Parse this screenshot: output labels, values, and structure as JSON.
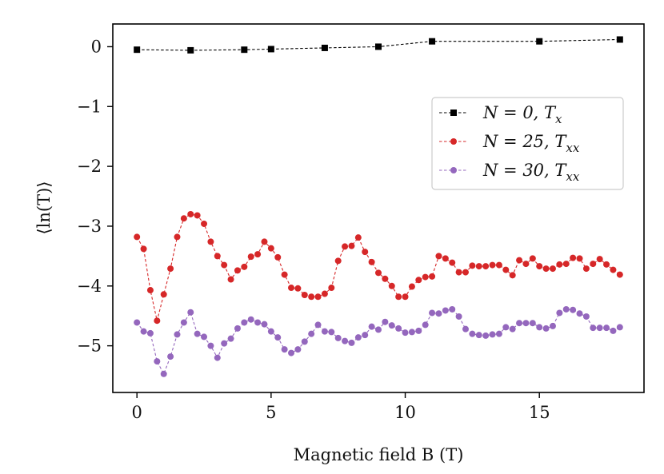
{
  "chart_data": {
    "type": "line",
    "title": "",
    "xlabel": "Magnetic field B (T)",
    "ylabel": "⟨ln(T)⟩",
    "xlim": [
      -0.9,
      18.9
    ],
    "ylim": [
      -5.78,
      0.38
    ],
    "xticks": [
      0,
      5,
      10,
      15
    ],
    "xtick_labels": [
      "0",
      "5",
      "10",
      "15"
    ],
    "yticks": [
      0,
      -1,
      -2,
      -3,
      -4,
      -5
    ],
    "ytick_labels": [
      "0",
      "−1",
      "−2",
      "−3",
      "−4",
      "−5"
    ],
    "grid": false,
    "legend_position": "upper-right",
    "series": [
      {
        "name": "N = 0, T_x",
        "label_parts": [
          "N = 0, T",
          "x"
        ],
        "color": "#000000",
        "marker": "square",
        "x": [
          0,
          2,
          4,
          5,
          7,
          9,
          11,
          15,
          18
        ],
        "y": [
          -0.05,
          -0.06,
          -0.05,
          -0.04,
          -0.02,
          0.0,
          0.09,
          0.09,
          0.12
        ]
      },
      {
        "name": "N = 25, T_xx",
        "label_parts": [
          "N = 25, T",
          "xx"
        ],
        "color": "#d62728",
        "marker": "circle",
        "x": [
          0,
          0.25,
          0.5,
          0.75,
          1,
          1.25,
          1.5,
          1.75,
          2,
          2.25,
          2.5,
          2.75,
          3,
          3.25,
          3.5,
          3.75,
          4,
          4.25,
          4.5,
          4.75,
          5,
          5.25,
          5.5,
          5.75,
          6,
          6.25,
          6.5,
          6.75,
          7,
          7.25,
          7.5,
          7.75,
          8,
          8.25,
          8.5,
          8.75,
          9,
          9.25,
          9.5,
          9.75,
          10,
          10.25,
          10.5,
          10.75,
          11,
          11.25,
          11.5,
          11.75,
          12,
          12.25,
          12.5,
          12.75,
          13,
          13.25,
          13.5,
          13.75,
          14,
          14.25,
          14.5,
          14.75,
          15,
          15.25,
          15.5,
          15.75,
          16,
          16.25,
          16.5,
          16.75,
          17,
          17.25,
          17.5,
          17.75,
          18
        ],
        "y": [
          -3.18,
          -3.38,
          -4.07,
          -4.58,
          -4.14,
          -3.71,
          -3.18,
          -2.87,
          -2.8,
          -2.82,
          -2.96,
          -3.26,
          -3.5,
          -3.65,
          -3.89,
          -3.74,
          -3.68,
          -3.51,
          -3.47,
          -3.26,
          -3.37,
          -3.52,
          -3.81,
          -4.03,
          -4.04,
          -4.15,
          -4.18,
          -4.18,
          -4.13,
          -4.03,
          -3.58,
          -3.34,
          -3.33,
          -3.19,
          -3.43,
          -3.6,
          -3.78,
          -3.88,
          -4.0,
          -4.18,
          -4.18,
          -4.01,
          -3.9,
          -3.85,
          -3.84,
          -3.5,
          -3.54,
          -3.61,
          -3.77,
          -3.77,
          -3.66,
          -3.67,
          -3.67,
          -3.65,
          -3.65,
          -3.73,
          -3.82,
          -3.57,
          -3.63,
          -3.54,
          -3.67,
          -3.71,
          -3.71,
          -3.64,
          -3.63,
          -3.53,
          -3.54,
          -3.71,
          -3.63,
          -3.55,
          -3.64,
          -3.73,
          -3.81
        ]
      },
      {
        "name": "N = 30, T_xx",
        "label_parts": [
          "N = 30, T",
          "xx"
        ],
        "color": "#9467bd",
        "marker": "circle",
        "x": [
          0,
          0.25,
          0.5,
          0.75,
          1,
          1.25,
          1.5,
          1.75,
          2,
          2.25,
          2.5,
          2.75,
          3,
          3.25,
          3.5,
          3.75,
          4,
          4.25,
          4.5,
          4.75,
          5,
          5.25,
          5.5,
          5.75,
          6,
          6.25,
          6.5,
          6.75,
          7,
          7.25,
          7.5,
          7.75,
          8,
          8.25,
          8.5,
          8.75,
          9,
          9.25,
          9.5,
          9.75,
          10,
          10.25,
          10.5,
          10.75,
          11,
          11.25,
          11.5,
          11.75,
          12,
          12.25,
          12.5,
          12.75,
          13,
          13.25,
          13.5,
          13.75,
          14,
          14.25,
          14.5,
          14.75,
          15,
          15.25,
          15.5,
          15.75,
          16,
          16.25,
          16.5,
          16.75,
          17,
          17.25,
          17.5,
          17.75,
          18
        ],
        "y": [
          -4.61,
          -4.76,
          -4.79,
          -5.26,
          -5.47,
          -5.18,
          -4.81,
          -4.61,
          -4.44,
          -4.8,
          -4.85,
          -5.0,
          -5.2,
          -4.96,
          -4.88,
          -4.71,
          -4.61,
          -4.56,
          -4.61,
          -4.64,
          -4.76,
          -4.86,
          -5.06,
          -5.12,
          -5.06,
          -4.93,
          -4.8,
          -4.65,
          -4.76,
          -4.77,
          -4.87,
          -4.92,
          -4.95,
          -4.86,
          -4.82,
          -4.68,
          -4.73,
          -4.6,
          -4.66,
          -4.71,
          -4.78,
          -4.77,
          -4.75,
          -4.65,
          -4.45,
          -4.46,
          -4.41,
          -4.39,
          -4.51,
          -4.72,
          -4.8,
          -4.82,
          -4.83,
          -4.81,
          -4.8,
          -4.69,
          -4.72,
          -4.62,
          -4.62,
          -4.62,
          -4.69,
          -4.71,
          -4.67,
          -4.45,
          -4.39,
          -4.4,
          -4.46,
          -4.51,
          -4.7,
          -4.7,
          -4.7,
          -4.75,
          -4.69
        ]
      }
    ]
  }
}
